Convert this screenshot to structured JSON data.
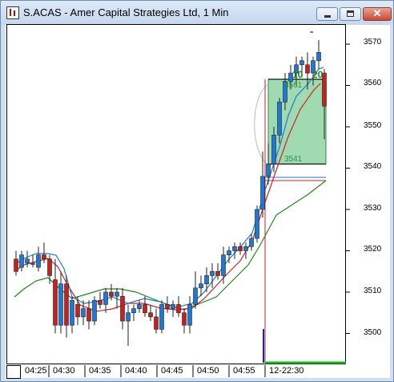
{
  "window": {
    "title": "S.ACAS - Amer Capital Strategies Ltd, 1 Min",
    "buttons": [
      "minimize",
      "maximize",
      "close"
    ],
    "close_glyph": "✕"
  },
  "chart_data": {
    "type": "candlestick",
    "symbol": "S.ACAS",
    "interval": "1 Min",
    "y_ticks": [
      3570,
      3560,
      3550,
      3540,
      3530,
      3520,
      3510,
      3500
    ],
    "x_tick_labels": [
      "04:25",
      "04:30",
      "04:35",
      "04:40",
      "04:45",
      "04:50",
      "04:55",
      "12-22:30"
    ],
    "ylim": [
      3495,
      3572
    ],
    "annotations": {
      "position_box_entry": "3561",
      "position_box_stop": "3541",
      "green_labels": [
        "10",
        "20"
      ]
    },
    "colors": {
      "up": "#1e78d6",
      "down": "#c8201e",
      "ema_fast": "#1e78d6",
      "ema_mid": "#d32020",
      "ema_slow": "#1a8a1a",
      "position_box": "#8fd3a2"
    }
  }
}
